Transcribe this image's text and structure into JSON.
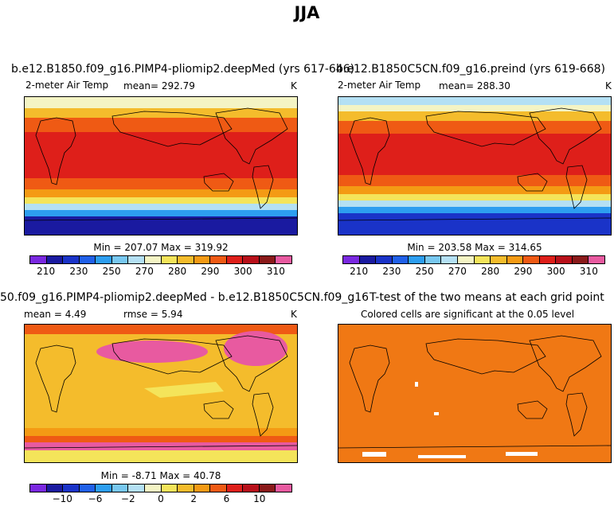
{
  "page_title": "JJA",
  "chart_data": [
    {
      "type": "heatmap",
      "title": "b.e12.B1850.f09_g16.PIMP4-pliomip2.deepMed (yrs 617-646)",
      "variable": "2-meter Air Temp",
      "mean_text": "mean= 292.79",
      "units": "K",
      "minmax_text": "Min = 207.07 Max = 319.92",
      "min": 207.07,
      "max": 319.92,
      "colorbar_ticks": [
        "210",
        "230",
        "250",
        "270",
        "280",
        "290",
        "300",
        "310"
      ],
      "colorbar_colors": [
        "#7a28e0",
        "#1a1aa0",
        "#1a33c8",
        "#2060e8",
        "#2d9ef0",
        "#78c8f0",
        "#b4e0f4",
        "#f4f4c4",
        "#f4e45a",
        "#f4bc2c",
        "#f49a14",
        "#ef5a14",
        "#de1f1a",
        "#b8101a",
        "#8a1a1a",
        "#e85aa0"
      ]
    },
    {
      "type": "heatmap",
      "title": "b.e12.B1850C5CN.f09_g16.preind (yrs 619-668)",
      "variable": "2-meter Air Temp",
      "mean_text": "mean= 288.30",
      "units": "K",
      "minmax_text": "Min = 203.58 Max = 314.65",
      "min": 203.58,
      "max": 314.65,
      "colorbar_ticks": [
        "210",
        "230",
        "250",
        "270",
        "280",
        "290",
        "300",
        "310"
      ],
      "colorbar_colors": [
        "#7a28e0",
        "#1a1aa0",
        "#1a33c8",
        "#2060e8",
        "#2d9ef0",
        "#78c8f0",
        "#b4e0f4",
        "#f4f4c4",
        "#f4e45a",
        "#f4bc2c",
        "#f49a14",
        "#ef5a14",
        "#de1f1a",
        "#b8101a",
        "#8a1a1a",
        "#e85aa0"
      ]
    },
    {
      "type": "heatmap",
      "title": "50.f09_g16.PIMP4-pliomip2.deepMed - b.e12.B1850C5CN.f09_g16.preind",
      "mean_text": "mean =    4.49",
      "rmse_text": "rmse =    5.94",
      "units": "K",
      "minmax_text": "Min =  -8.71 Max =  40.78",
      "min": -8.71,
      "max": 40.78,
      "colorbar_ticks": [
        "−10",
        "−6",
        "−2",
        "0",
        "2",
        "6",
        "10"
      ],
      "colorbar_colors": [
        "#7a28e0",
        "#1a1aa0",
        "#1a33c8",
        "#2060e8",
        "#2d9ef0",
        "#78c8f0",
        "#b4e0f4",
        "#f4f4c4",
        "#f4e45a",
        "#f4bc2c",
        "#f49a14",
        "#ef5a14",
        "#de1f1a",
        "#b8101a",
        "#8a1a1a",
        "#e85aa0"
      ]
    },
    {
      "type": "heatmap",
      "title": "T-test of the two means at each grid point",
      "subtitle": "Colored cells are significant at the 0.05 level"
    }
  ]
}
